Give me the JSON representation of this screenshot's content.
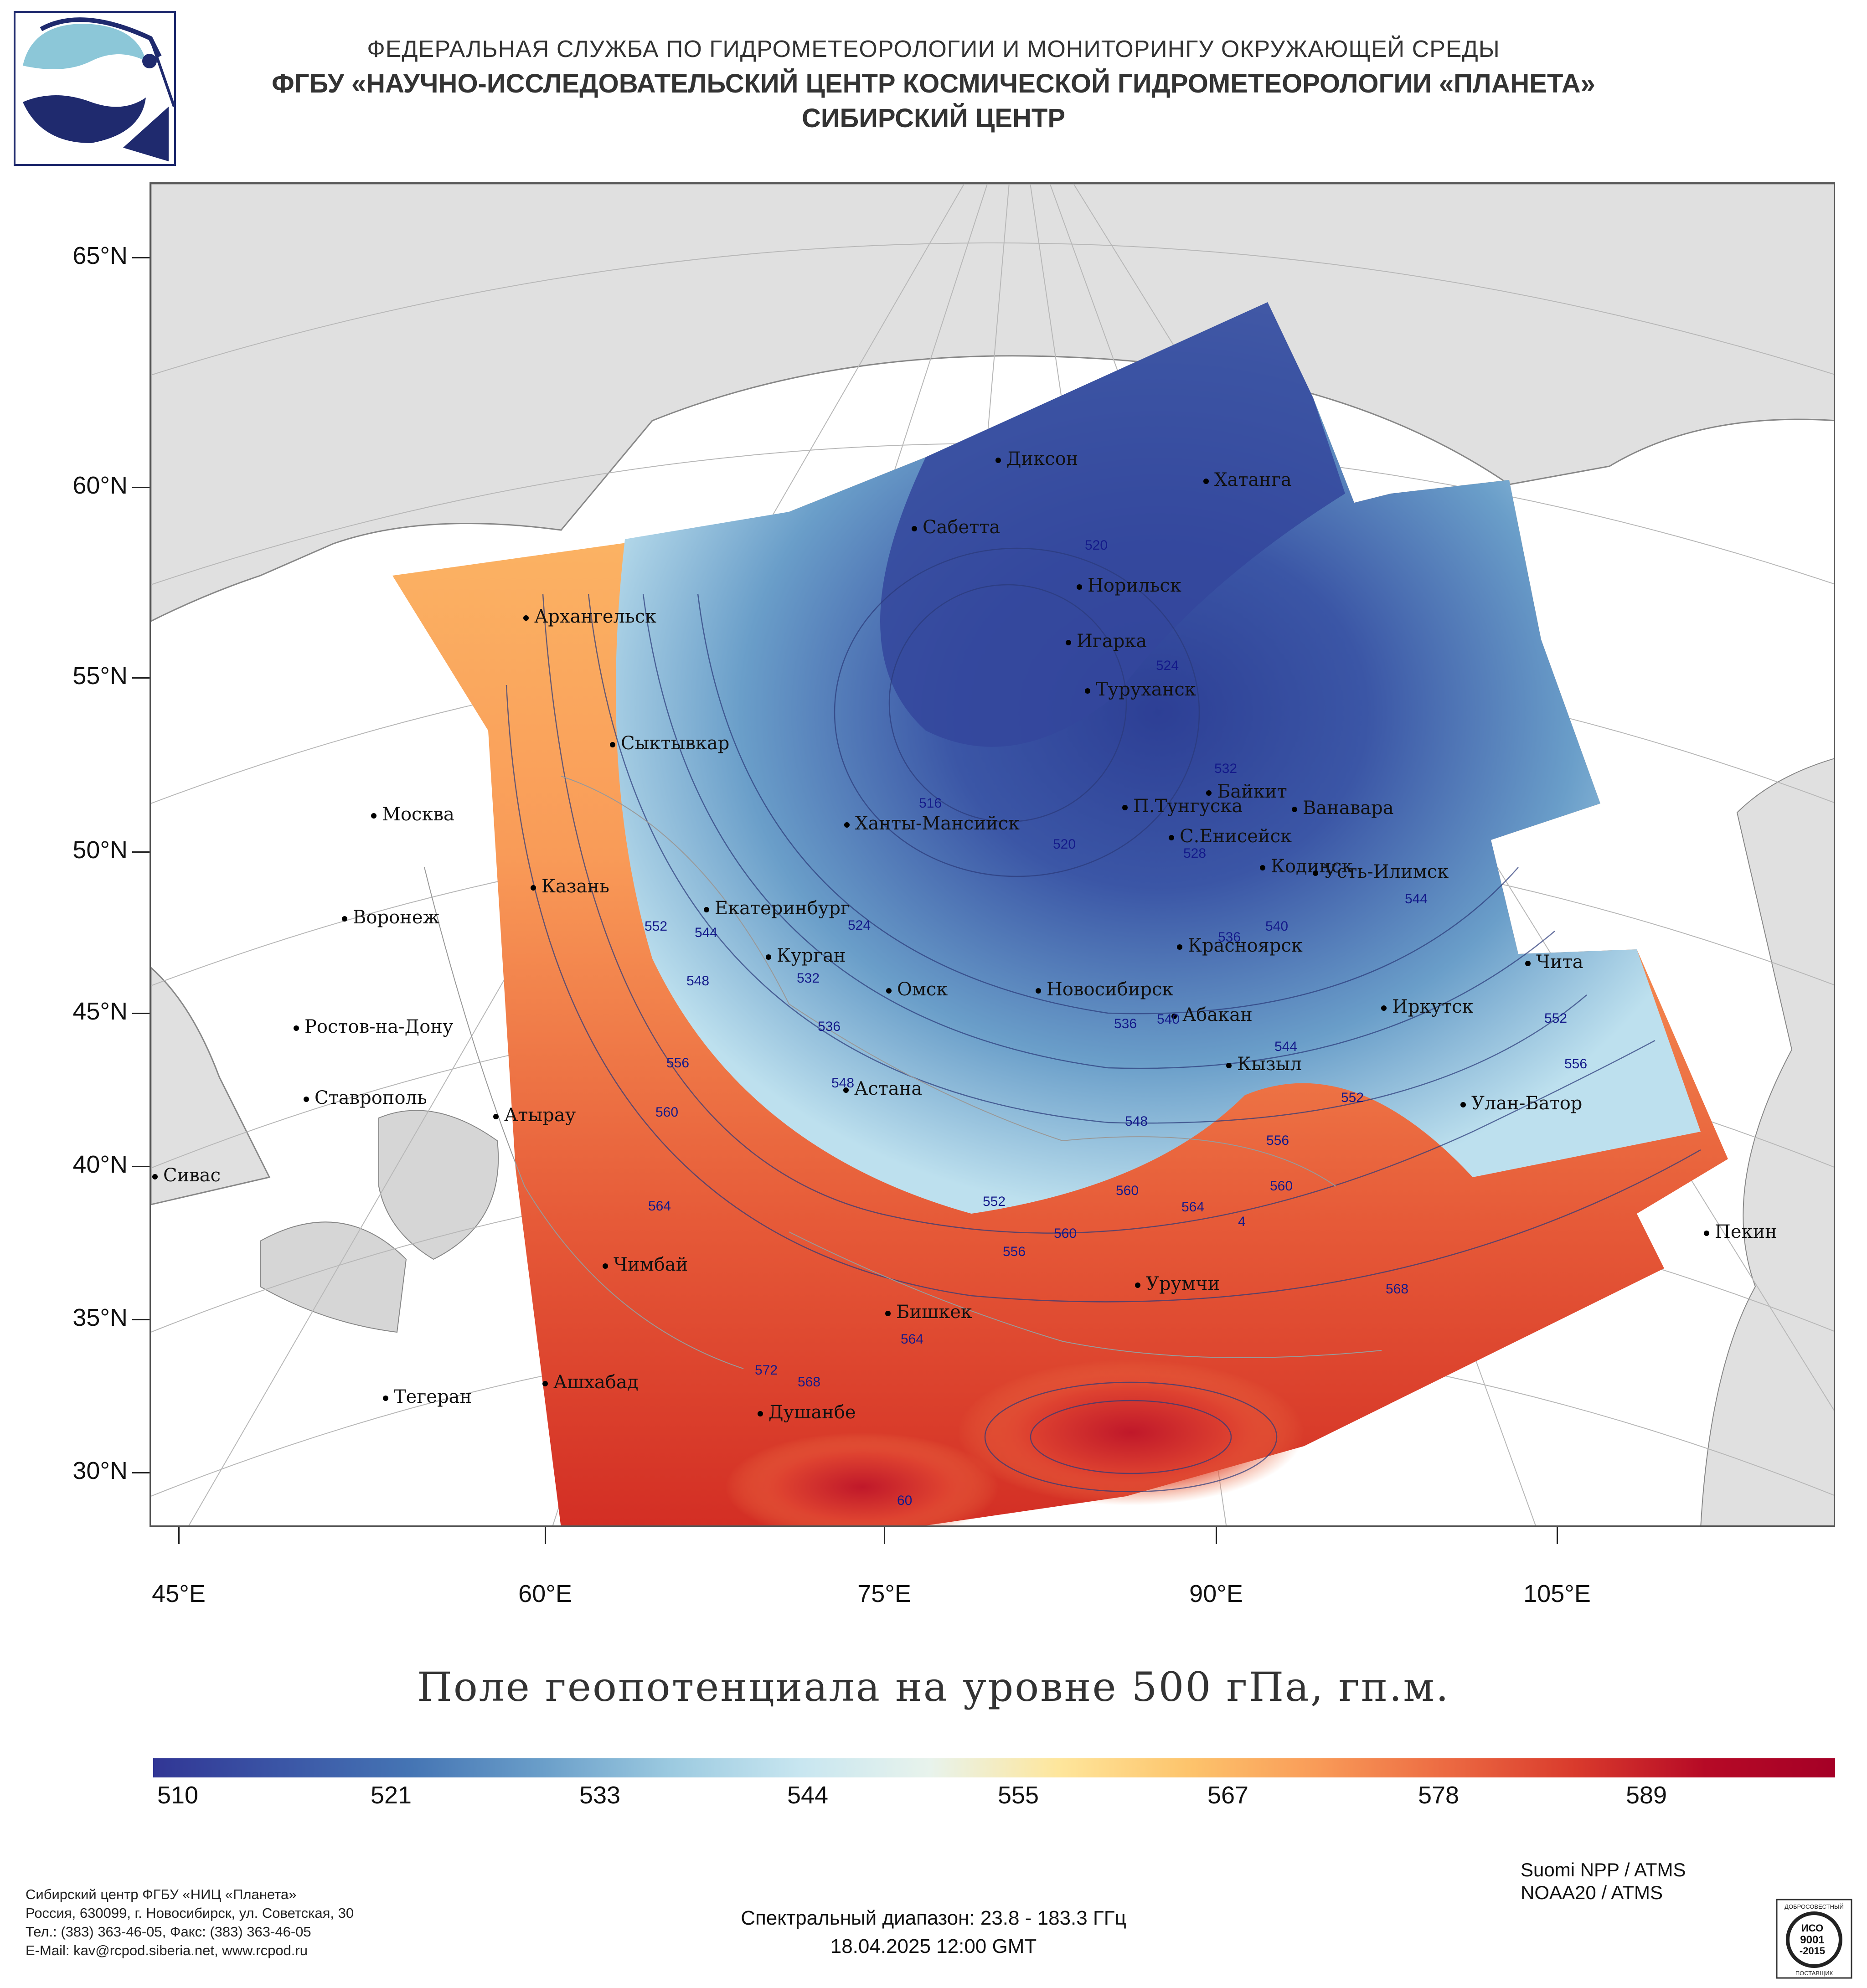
{
  "header": {
    "line1": "ФЕДЕРАЛЬНАЯ СЛУЖБА ПО ГИДРОМЕТЕОРОЛОГИИ И МОНИТОРИНГУ ОКРУЖАЮЩЕЙ СРЕДЫ",
    "line2": "ФГБУ «НАУЧНО-ИССЛЕДОВАТЕЛЬСКИЙ ЦЕНТР КОСМИЧЕСКОЙ ГИДРОМЕТЕОРОЛОГИИ «ПЛАНЕТА»",
    "line3": "СИБИРСКИЙ ЦЕНТР"
  },
  "map": {
    "latitude_labels": [
      "65°N",
      "60°N",
      "55°N",
      "50°N",
      "45°N",
      "40°N",
      "35°N",
      "30°N"
    ],
    "longitude_labels": [
      "45°E",
      "60°E",
      "75°E",
      "90°E",
      "105°E"
    ],
    "cities": [
      {
        "name": "Диксон"
      },
      {
        "name": "Хатанга"
      },
      {
        "name": "Сабетта"
      },
      {
        "name": "Норильск"
      },
      {
        "name": "Архангельск"
      },
      {
        "name": "Игарка"
      },
      {
        "name": "Туруханск"
      },
      {
        "name": "Сыктывкар"
      },
      {
        "name": "Байкит"
      },
      {
        "name": "Москва"
      },
      {
        "name": "П.Тунгуска"
      },
      {
        "name": "Ванавара"
      },
      {
        "name": "Ханты-Мансийск"
      },
      {
        "name": "С.Енисейск"
      },
      {
        "name": "Кодинск"
      },
      {
        "name": "Усть-Илимск"
      },
      {
        "name": "Казань"
      },
      {
        "name": "Екатеринбург"
      },
      {
        "name": "Воронеж"
      },
      {
        "name": "Красноярск"
      },
      {
        "name": "Курган"
      },
      {
        "name": "Чита"
      },
      {
        "name": "Омск"
      },
      {
        "name": "Новосибирск"
      },
      {
        "name": "Иркутск"
      },
      {
        "name": "Ростов-на-Дону"
      },
      {
        "name": "Абакан"
      },
      {
        "name": "Кызыл"
      },
      {
        "name": "Астана"
      },
      {
        "name": "Ставрополь"
      },
      {
        "name": "Улан-Батор"
      },
      {
        "name": "Атырау"
      },
      {
        "name": "Сивас"
      },
      {
        "name": "Пекин"
      },
      {
        "name": "Чимбай"
      },
      {
        "name": "Урумчи"
      },
      {
        "name": "Бишкек"
      },
      {
        "name": "Ашхабад"
      },
      {
        "name": "Тегеран"
      },
      {
        "name": "Душанбе"
      }
    ],
    "isolines": [
      "520",
      "524",
      "532",
      "516",
      "520",
      "528",
      "552",
      "544",
      "524",
      "548",
      "532",
      "536",
      "536",
      "540",
      "540",
      "536",
      "544",
      "544",
      "552",
      "556",
      "556",
      "560",
      "548",
      "548",
      "556",
      "560",
      "552",
      "564",
      "552",
      "560",
      "564",
      "4",
      "560",
      "556",
      "568",
      "564",
      "572",
      "568",
      "60"
    ]
  },
  "title": "Поле геопотенциала на уровне 500 гПа, гп.м.",
  "colorbar": {
    "labels": [
      "510",
      "521",
      "533",
      "544",
      "555",
      "567",
      "578",
      "589"
    ],
    "colors": [
      "#313695",
      "#3b56a6",
      "#4575b4",
      "#6a9ec9",
      "#9ccae0",
      "#c8e6f0",
      "#e8f3ec",
      "#fee69c",
      "#fdc46c",
      "#f99b58",
      "#ec6a42",
      "#d93a2c",
      "#b60a26",
      "#a50026"
    ]
  },
  "footer": {
    "org": "Сибирский центр ФГБУ «НИЦ «Планета»",
    "address": "Россия, 630099, г. Новосибирск, ул. Советская, 30",
    "phone": "Тел.: (383) 363-46-05, Факс: (383) 363-46-05",
    "email": "E-Mail: kav@rcpod.siberia.net, www.rcpod.ru",
    "spectral": "Спектральный диапазон: 23.8 - 183.3 ГГц",
    "datetime": "18.04.2025 12:00 GMT",
    "sat1": "Suomi NPP / ATMS",
    "sat2": "NOAA20 / ATMS",
    "iso_top": "ДОБРОСОВЕСТНЫЙ",
    "iso_l1": "ИСО",
    "iso_l2": "9001",
    "iso_l3": "-2015",
    "iso_bottom": "ПОСТАВЩИК"
  }
}
